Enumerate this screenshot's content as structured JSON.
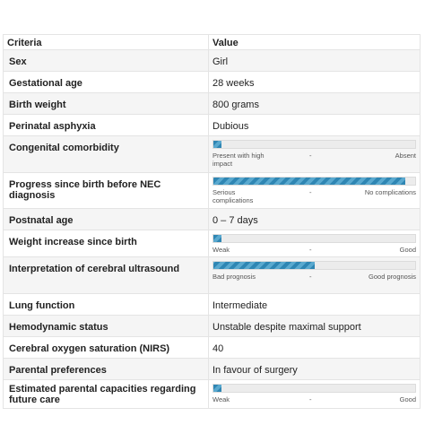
{
  "table": {
    "header": {
      "criteria": "Criteria",
      "value": "Value"
    },
    "rows": [
      {
        "criteria": "Sex",
        "value": "Girl"
      },
      {
        "criteria": "Gestational age",
        "value": "28 weeks"
      },
      {
        "criteria": "Birth weight",
        "value": "800 grams"
      },
      {
        "criteria": "Perinatal asphyxia",
        "value": "Dubious"
      },
      {
        "criteria": "Congenital comorbidity",
        "scale": {
          "left": "Present with high impact",
          "mid": "-",
          "right": "Absent",
          "level": 0.04
        }
      },
      {
        "criteria": "Progress since birth before NEC diagnosis",
        "scale": {
          "left": "Serious complications",
          "mid": "-",
          "right": "No complications",
          "level": 0.95
        }
      },
      {
        "criteria": "Postnatal age",
        "value": "0 – 7 days"
      },
      {
        "criteria": "Weight increase since birth",
        "scale": {
          "left": "Weak",
          "mid": "-",
          "right": "Good",
          "level": 0.04
        }
      },
      {
        "criteria": "Interpretation of cerebral ultrasound",
        "scale": {
          "left": "Bad prognosis",
          "mid": "-",
          "right": "Good prognosis",
          "level": 0.5
        }
      },
      {
        "criteria": "Lung function",
        "value": "Intermediate"
      },
      {
        "criteria": "Hemodynamic status",
        "value": "Unstable despite maximal support"
      },
      {
        "criteria": "Cerebral oxygen saturation (NIRS)",
        "value": "40"
      },
      {
        "criteria": "Parental preferences",
        "value": "In favour of surgery"
      },
      {
        "criteria": "Estimated parental capacities regarding future care",
        "scale": {
          "left": "Weak",
          "mid": "-",
          "right": "Good",
          "level": 0.04
        }
      }
    ]
  }
}
